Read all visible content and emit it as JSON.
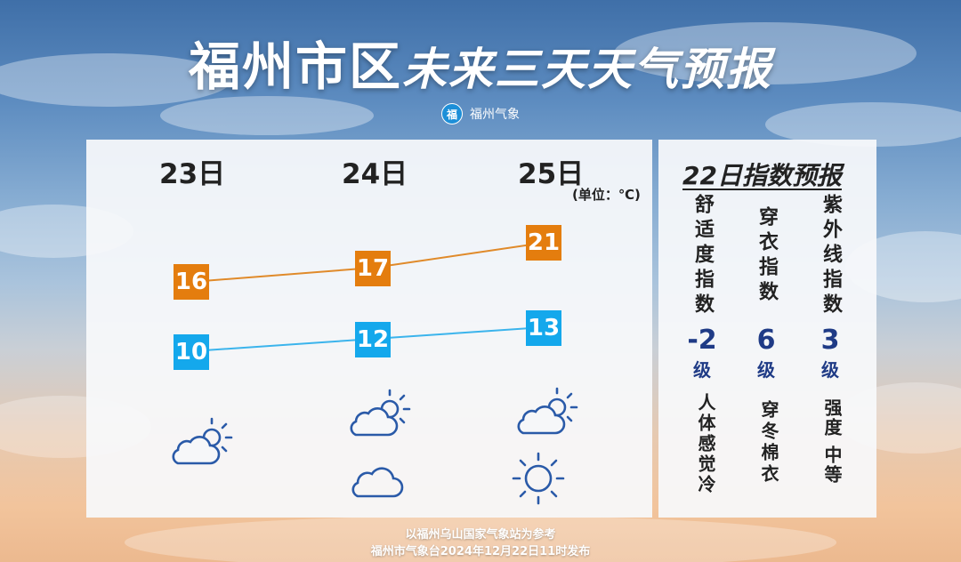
{
  "title": {
    "main": "福州市区",
    "sub": "未来三天天气预报"
  },
  "brand": {
    "logo_char": "福",
    "name": "福州气象"
  },
  "forecast": {
    "unit": "(单位：℃)",
    "days": [
      {
        "label": "23日",
        "high": "16",
        "low": "10",
        "icons": [
          "cloudy-sun-icon"
        ]
      },
      {
        "label": "24日",
        "high": "17",
        "low": "12",
        "icons": [
          "cloudy-sun-icon",
          "cloud-icon"
        ]
      },
      {
        "label": "25日",
        "high": "21",
        "low": "13",
        "icons": [
          "cloudy-sun-icon",
          "sun-icon"
        ]
      }
    ],
    "colors": {
      "high": "#e47d0e",
      "low": "#14a8ec"
    }
  },
  "index": {
    "title": "22日指数预报",
    "items": [
      {
        "name": "舒适度指数",
        "level": "-2",
        "level_unit": "级",
        "desc": "人体感觉冷"
      },
      {
        "name": "穿衣指数",
        "level": "6",
        "level_unit": "级",
        "desc": "穿冬棉衣"
      },
      {
        "name": "紫外线指数",
        "level": "3",
        "level_unit": "级",
        "desc": "强度 中等"
      }
    ]
  },
  "footer": {
    "line1": "以福州乌山国家气象站为参考",
    "line2": "福州市气象台2024年12月22日11时发布"
  }
}
